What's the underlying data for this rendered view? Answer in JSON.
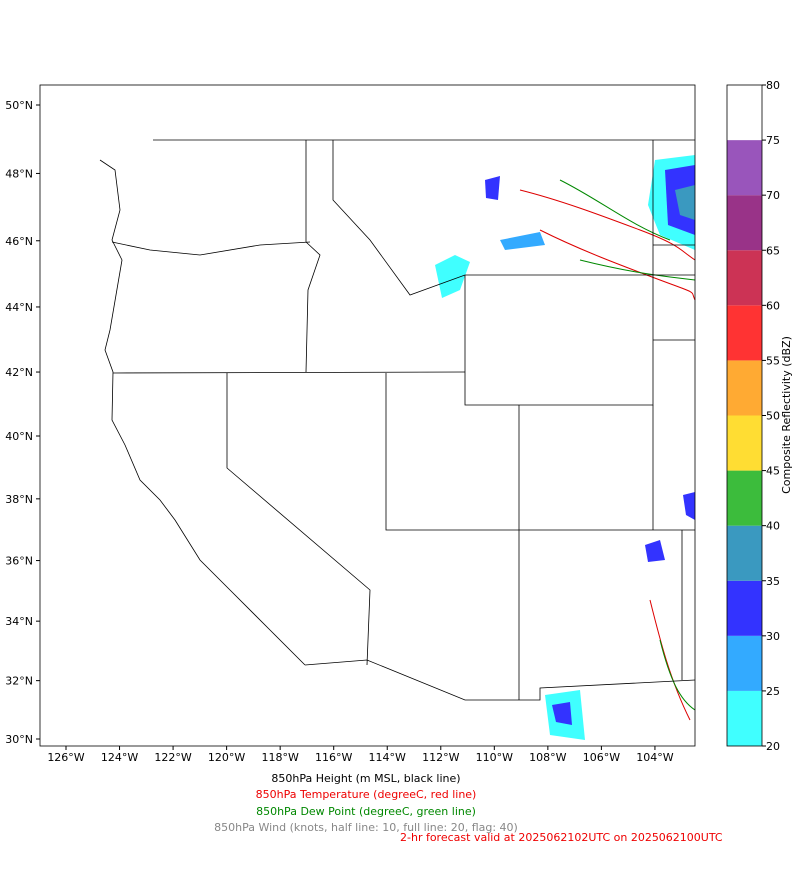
{
  "map": {
    "lat_ticks": [
      {
        "value": 50,
        "label": "50°N"
      },
      {
        "value": 48,
        "label": "48°N"
      },
      {
        "value": 46,
        "label": "46°N"
      },
      {
        "value": 44,
        "label": "44°N"
      },
      {
        "value": 42,
        "label": "42°N"
      },
      {
        "value": 40,
        "label": "40°N"
      },
      {
        "value": 38,
        "label": "38°N"
      },
      {
        "value": 36,
        "label": "36°N"
      },
      {
        "value": 34,
        "label": "34°N"
      },
      {
        "value": 32,
        "label": "32°N"
      },
      {
        "value": 30,
        "label": "30°N"
      }
    ],
    "lon_ticks": [
      {
        "value": -126,
        "label": "126°W"
      },
      {
        "value": -124,
        "label": "124°W"
      },
      {
        "value": -122,
        "label": "122°W"
      },
      {
        "value": -120,
        "label": "120°W"
      },
      {
        "value": -118,
        "label": "118°W"
      },
      {
        "value": -116,
        "label": "116°W"
      },
      {
        "value": -114,
        "label": "114°W"
      },
      {
        "value": -112,
        "label": "112°W"
      },
      {
        "value": -110,
        "label": "110°W"
      },
      {
        "value": -108,
        "label": "108°W"
      },
      {
        "value": -106,
        "label": "106°W"
      },
      {
        "value": -104,
        "label": "104°W"
      }
    ]
  },
  "colorbar": {
    "label": "Composite Reflectivity (dBZ)",
    "ticks": [
      20,
      25,
      30,
      35,
      40,
      45,
      50,
      55,
      60,
      65,
      70,
      75,
      80
    ],
    "colors": [
      "#40ffff",
      "#33aaff",
      "#3333ff",
      "#3a99c0",
      "#3cbc3c",
      "#ffdd33",
      "#ffaa33",
      "#ff3333",
      "#cc3355",
      "#993388",
      "#9955bb",
      "#ffffff"
    ]
  },
  "captions": {
    "height": "850hPa Height (m MSL, black line)",
    "temperature": "850hPa Temperature (degreeC, red line)",
    "dew_point": "850hPa Dew Point (degreeC, green line)",
    "wind": "850hPa Wind (knots, half line: 10, full line: 20, flag: 40)",
    "forecast": "2-hr forecast valid at 2025062102UTC on 2025062100UTC"
  }
}
